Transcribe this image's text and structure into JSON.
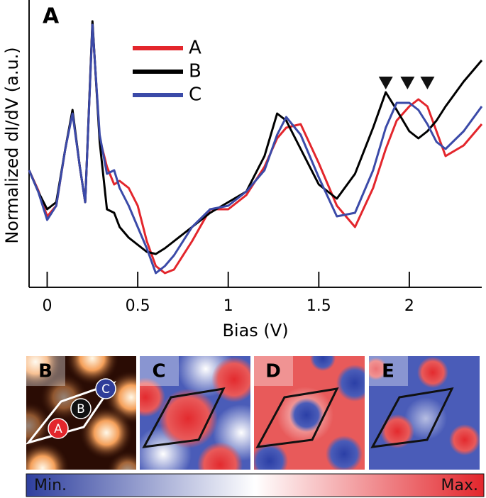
{
  "chart_data": {
    "type": "line",
    "panel_label": "A",
    "xlabel": "Bias (V)",
    "ylabel": "Normalized dI/dV (a.u.)",
    "x": [
      -0.1,
      -0.05,
      0,
      0.05,
      0.1,
      0.14,
      0.18,
      0.21,
      0.25,
      0.29,
      0.33,
      0.37,
      0.4,
      0.45,
      0.5,
      0.55,
      0.6,
      0.65,
      0.7,
      0.8,
      0.9,
      1.0,
      1.1,
      1.2,
      1.27,
      1.32,
      1.4,
      1.5,
      1.6,
      1.7,
      1.8,
      1.87,
      1.93,
      2.0,
      2.05,
      2.1,
      2.15,
      2.2,
      2.3,
      2.4
    ],
    "series": [
      {
        "name": "A",
        "color": "#e3262c",
        "values": [
          165,
          137,
          100,
          115,
          195,
          247,
          170,
          120,
          372,
          210,
          170,
          145,
          150,
          140,
          115,
          65,
          30,
          20,
          25,
          65,
          110,
          110,
          130,
          170,
          210,
          225,
          230,
          175,
          115,
          85,
          140,
          195,
          235,
          255,
          265,
          255,
          220,
          185,
          200,
          230
        ]
      },
      {
        "name": "B",
        "color": "#000000",
        "values": [
          165,
          135,
          110,
          120,
          195,
          250,
          170,
          120,
          375,
          205,
          110,
          105,
          85,
          70,
          60,
          50,
          47,
          55,
          65,
          85,
          105,
          120,
          135,
          185,
          245,
          235,
          195,
          145,
          125,
          160,
          225,
          275,
          250,
          220,
          210,
          220,
          235,
          255,
          290,
          320
        ]
      },
      {
        "name": "C",
        "color": "#3b4aa8",
        "values": [
          165,
          135,
          95,
          115,
          195,
          245,
          170,
          120,
          370,
          215,
          160,
          165,
          140,
          115,
          85,
          55,
          20,
          30,
          45,
          85,
          110,
          115,
          135,
          165,
          215,
          240,
          215,
          155,
          100,
          105,
          165,
          225,
          260,
          260,
          250,
          230,
          205,
          195,
          220,
          255
        ]
      }
    ],
    "markers": {
      "x": [
        1.87,
        1.99,
        2.1
      ],
      "y": 287
    },
    "xlim": [
      -0.1,
      2.4
    ],
    "xticks": [
      0,
      0.5,
      1,
      1.5,
      2
    ],
    "ylim": [
      0,
      405
    ]
  },
  "maps": {
    "panels": [
      "B",
      "C",
      "D",
      "E"
    ],
    "sites": [
      "A",
      "B",
      "C"
    ]
  },
  "colorbar": {
    "min": "Min.",
    "max": "Max."
  }
}
